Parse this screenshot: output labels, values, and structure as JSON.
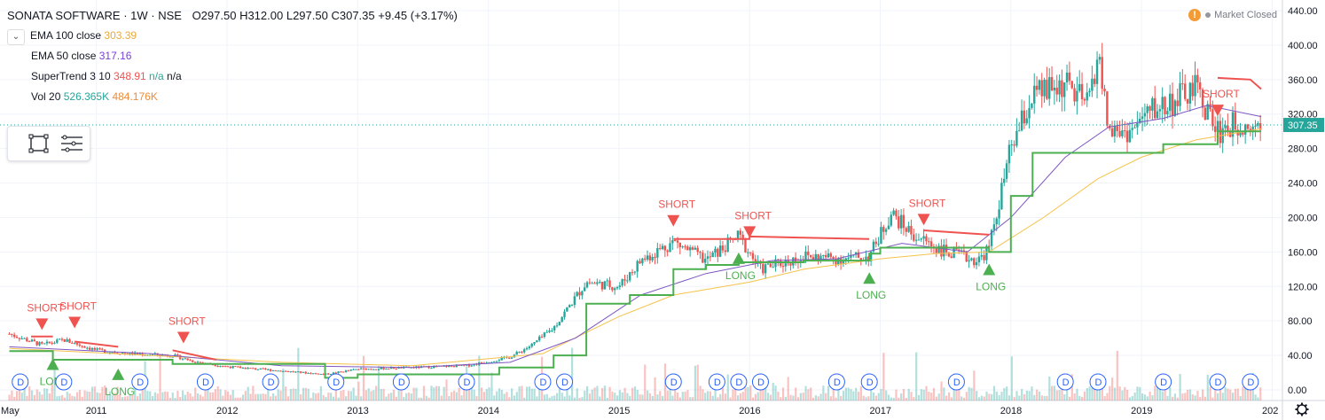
{
  "legend": {
    "symbol": "SONATA SOFTWARE · 1W · NSE",
    "open": "O297.50",
    "high": "H312.00",
    "low": "L297.50",
    "close": "C307.35",
    "change": "+9.45 (+3.17%)",
    "ema100_label": "EMA 100 close",
    "ema100_value": "303.39",
    "ema50_label": "EMA 50 close",
    "ema50_value": "317.16",
    "supertrend_label": "SuperTrend 3 10",
    "supertrend_value": "348.91",
    "supertrend_na1": "n/a",
    "supertrend_na2": "n/a",
    "vol_label": "Vol 20",
    "vol_value1": "526.365K",
    "vol_value2": "484.176K"
  },
  "market_status": "Market Closed",
  "last_price_tag": "307.35",
  "colors": {
    "up": "#26a69a",
    "down": "#ef5350",
    "ema100": "#f5c24a",
    "ema50": "#7e57c2",
    "supertrend_up": "#4caf50",
    "supertrend_down": "#ef5350",
    "price_tag": "#26a69a"
  },
  "icons": [
    "chevron-down-icon",
    "rectangle-tool-icon",
    "lines-menu-icon",
    "warning-icon",
    "settings-gear-icon"
  ],
  "chart_data": {
    "type": "candlestick",
    "title": "SONATA SOFTWARE · 1W · NSE",
    "timeframe": "1W",
    "y_axis": {
      "ticks": [
        "0.00",
        "40.00",
        "80.00",
        "120.00",
        "160.00",
        "200.00",
        "240.00",
        "280.00",
        "320.00",
        "360.00",
        "400.00",
        "440.00"
      ],
      "range": [
        0,
        440
      ],
      "position": "right"
    },
    "x_axis": {
      "ticks": [
        "May",
        "2011",
        "2012",
        "2013",
        "2014",
        "2015",
        "2016",
        "2017",
        "2018",
        "2019",
        "202"
      ],
      "range": [
        "2010-05",
        "2019-12"
      ]
    },
    "grid": true,
    "last_price": 307.35,
    "price_path": [
      [
        "2010-05",
        65
      ],
      [
        "2010-08",
        52
      ],
      [
        "2010-10",
        58
      ],
      [
        "2011-01",
        46
      ],
      [
        "2011-04",
        42
      ],
      [
        "2011-08",
        40
      ],
      [
        "2011-10",
        33
      ],
      [
        "2012-01",
        27
      ],
      [
        "2012-06",
        22
      ],
      [
        "2012-10",
        18
      ],
      [
        "2013-01",
        24
      ],
      [
        "2013-06",
        26
      ],
      [
        "2013-11",
        28
      ],
      [
        "2014-03",
        38
      ],
      [
        "2014-05",
        52
      ],
      [
        "2014-07",
        72
      ],
      [
        "2014-10",
        125
      ],
      [
        "2015-01",
        120
      ],
      [
        "2015-03",
        150
      ],
      [
        "2015-06",
        172
      ],
      [
        "2015-09",
        150
      ],
      [
        "2015-12",
        178
      ],
      [
        "2016-02",
        140
      ],
      [
        "2016-06",
        155
      ],
      [
        "2016-10",
        152
      ],
      [
        "2016-12",
        155
      ],
      [
        "2017-02",
        205
      ],
      [
        "2017-04",
        180
      ],
      [
        "2017-07",
        160
      ],
      [
        "2017-10",
        150
      ],
      [
        "2017-11",
        165
      ],
      [
        "2018-01",
        280
      ],
      [
        "2018-03",
        340
      ],
      [
        "2018-06",
        355
      ],
      [
        "2018-08",
        330
      ],
      [
        "2018-09",
        390
      ],
      [
        "2018-10",
        300
      ],
      [
        "2018-12",
        300
      ],
      [
        "2019-02",
        325
      ],
      [
        "2019-04",
        335
      ],
      [
        "2019-06",
        350
      ],
      [
        "2019-08",
        300
      ],
      [
        "2019-10",
        310
      ],
      [
        "2019-12",
        307
      ]
    ],
    "series": [
      {
        "name": "EMA 100 close",
        "values": [
          [
            "2010-05",
            48
          ],
          [
            "2011-06",
            40
          ],
          [
            "2012-06",
            32
          ],
          [
            "2013-06",
            28
          ],
          [
            "2014-06",
            42
          ],
          [
            "2015-01",
            85
          ],
          [
            "2015-06",
            110
          ],
          [
            "2016-01",
            125
          ],
          [
            "2016-06",
            140
          ],
          [
            "2017-01",
            152
          ],
          [
            "2017-06",
            158
          ],
          [
            "2017-11",
            160
          ],
          [
            "2018-04",
            200
          ],
          [
            "2018-09",
            245
          ],
          [
            "2019-01",
            270
          ],
          [
            "2019-06",
            290
          ],
          [
            "2019-12",
            303
          ]
        ]
      },
      {
        "name": "EMA 50 close",
        "values": [
          [
            "2010-05",
            50
          ],
          [
            "2011-06",
            42
          ],
          [
            "2012-06",
            28
          ],
          [
            "2013-06",
            26
          ],
          [
            "2014-03",
            32
          ],
          [
            "2014-09",
            60
          ],
          [
            "2015-03",
            110
          ],
          [
            "2015-09",
            135
          ],
          [
            "2016-03",
            150
          ],
          [
            "2016-09",
            152
          ],
          [
            "2017-03",
            170
          ],
          [
            "2017-09",
            160
          ],
          [
            "2018-01",
            200
          ],
          [
            "2018-06",
            270
          ],
          [
            "2018-10",
            305
          ],
          [
            "2019-03",
            315
          ],
          [
            "2019-07",
            330
          ],
          [
            "2019-12",
            317
          ]
        ]
      },
      {
        "name": "SuperTrend 3 10",
        "values": [
          [
            "2010-05",
            45
          ],
          [
            "2010-09",
            45
          ],
          [
            "2010-09",
            35
          ],
          [
            "2011-08",
            35
          ],
          [
            "2011-08",
            30
          ],
          [
            "2012-10",
            14
          ],
          [
            "2013-01",
            18
          ],
          [
            "2014-02",
            26
          ],
          [
            "2014-07",
            40
          ],
          [
            "2014-10",
            100
          ],
          [
            "2015-02",
            110
          ],
          [
            "2015-06",
            140
          ],
          [
            "2015-09",
            145
          ],
          [
            "2015-12",
            148
          ],
          [
            "2016-06",
            150
          ],
          [
            "2016-12",
            158
          ],
          [
            "2017-01",
            165
          ],
          [
            "2017-11",
            160
          ],
          [
            "2018-01",
            225
          ],
          [
            "2018-03",
            275
          ],
          [
            "2018-09",
            275
          ],
          [
            "2019-03",
            285
          ],
          [
            "2019-08",
            300
          ],
          [
            "2019-12",
            300
          ]
        ]
      }
    ],
    "signals": [
      {
        "label": "SHORT",
        "date": "2010-08"
      },
      {
        "label": "LONG",
        "date": "2010-09"
      },
      {
        "label": "SHORT",
        "date": "2010-11"
      },
      {
        "label": "LONG",
        "date": "2011-03"
      },
      {
        "label": "SHORT",
        "date": "2011-09"
      },
      {
        "label": "SHORT",
        "date": "2015-06"
      },
      {
        "label": "SHORT",
        "date": "2016-01"
      },
      {
        "label": "LONG",
        "date": "2015-12"
      },
      {
        "label": "LONG",
        "date": "2016-12"
      },
      {
        "label": "SHORT",
        "date": "2017-05"
      },
      {
        "label": "LONG",
        "date": "2017-11"
      },
      {
        "label": "SHORT",
        "date": "2019-08"
      }
    ],
    "dividend_marker_label": "D",
    "dividend_dates": [
      "2010-06",
      "2010-10",
      "2011-05",
      "2011-11",
      "2012-05",
      "2012-11",
      "2013-05",
      "2013-11",
      "2014-06",
      "2014-08",
      "2015-06",
      "2015-10",
      "2015-12",
      "2016-02",
      "2016-09",
      "2016-12",
      "2017-08",
      "2018-06",
      "2018-09",
      "2019-03",
      "2019-08",
      "2019-11"
    ]
  }
}
